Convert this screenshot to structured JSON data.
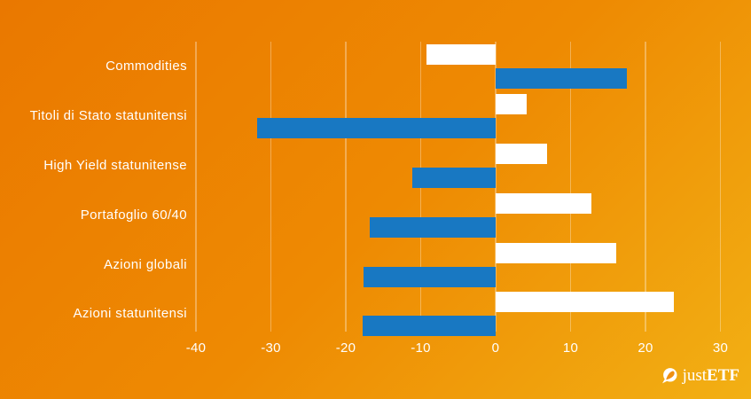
{
  "chart_data": {
    "type": "bar",
    "orientation": "horizontal",
    "categories": [
      "Commodities",
      "Titoli di Stato statunitensi",
      "High Yield statunitense",
      "Portafoglio 60/40",
      "Azioni globali",
      "Azioni statunitensi"
    ],
    "series": [
      {
        "name": "white-series",
        "color": "#ffffff",
        "values": [
          -9.2,
          4.2,
          6.9,
          12.8,
          16.1,
          23.8
        ]
      },
      {
        "name": "blue-series",
        "color": "#1878c2",
        "values": [
          17.5,
          -31.8,
          -11.1,
          -16.8,
          -17.6,
          -17.8
        ]
      }
    ],
    "x_ticks": [
      -40,
      -30,
      -20,
      -10,
      0,
      10,
      20,
      30
    ],
    "grid": "vertical-only",
    "legend": "none",
    "unit": "percent"
  },
  "branding": {
    "logo_text_regular": "just",
    "logo_text_bold": "ETF",
    "logo_icon": "justetf-circle-arrow-icon"
  },
  "colors": {
    "background_start": "#ea7800",
    "background_end": "#f2b014",
    "bar_white": "#ffffff",
    "bar_blue": "#1878c2",
    "grid": "rgba(255,255,255,0.32)",
    "text": "#ffffff"
  }
}
